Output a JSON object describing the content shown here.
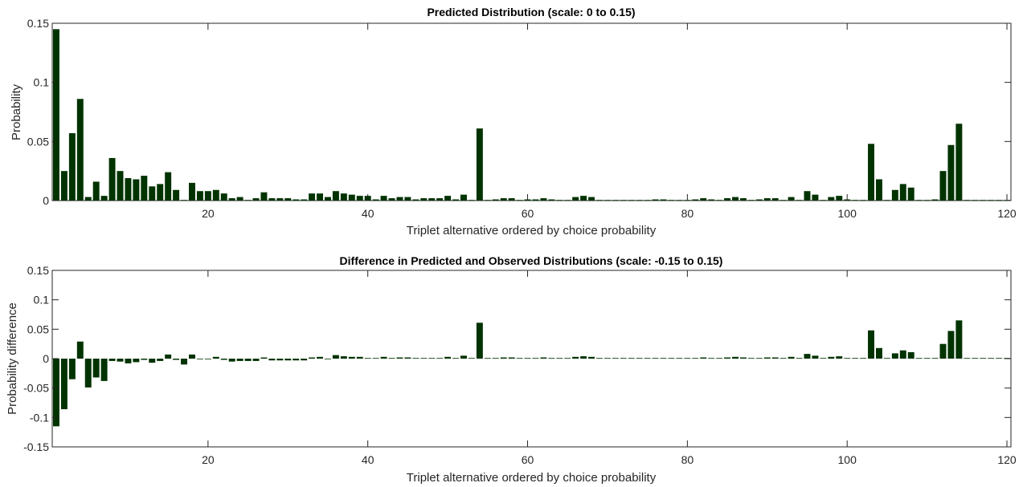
{
  "chart_data": [
    {
      "type": "bar",
      "title": "Predicted Distribution (scale: 0 to 0.15)",
      "xlabel": "Triplet alternative ordered by choice probability",
      "ylabel": "Probability",
      "xlim": [
        0.5,
        120.5
      ],
      "ylim": [
        0,
        0.15
      ],
      "xticks": [
        20,
        40,
        60,
        80,
        100,
        120
      ],
      "yticks": [
        0,
        0.05,
        0.1,
        0.15
      ],
      "xtick_labels": [
        "20",
        "40",
        "60",
        "80",
        "100",
        "120"
      ],
      "ytick_labels": [
        "0",
        "0.05",
        "0.1",
        "0.15"
      ],
      "grid": false,
      "bar_color": "#003300",
      "x": [
        1,
        2,
        3,
        4,
        5,
        6,
        7,
        8,
        9,
        10,
        11,
        12,
        13,
        14,
        15,
        16,
        17,
        18,
        19,
        20,
        21,
        22,
        23,
        24,
        25,
        26,
        27,
        28,
        29,
        30,
        31,
        32,
        33,
        34,
        35,
        36,
        37,
        38,
        39,
        40,
        41,
        42,
        43,
        44,
        45,
        46,
        47,
        48,
        49,
        50,
        51,
        52,
        53,
        54,
        55,
        56,
        57,
        58,
        59,
        60,
        61,
        62,
        63,
        64,
        65,
        66,
        67,
        68,
        69,
        70,
        71,
        72,
        73,
        74,
        75,
        76,
        77,
        78,
        79,
        80,
        81,
        82,
        83,
        84,
        85,
        86,
        87,
        88,
        89,
        90,
        91,
        92,
        93,
        94,
        95,
        96,
        97,
        98,
        99,
        100,
        101,
        102,
        103,
        104,
        105,
        106,
        107,
        108,
        109,
        110,
        111,
        112,
        113,
        114,
        115,
        116,
        117,
        118,
        119,
        120
      ],
      "values": [
        0.145,
        0.025,
        0.057,
        0.086,
        0.003,
        0.016,
        0.004,
        0.036,
        0.025,
        0.019,
        0.018,
        0.021,
        0.012,
        0.014,
        0.024,
        0.009,
        0.0005,
        0.015,
        0.008,
        0.008,
        0.009,
        0.006,
        0.002,
        0.003,
        0.0005,
        0.002,
        0.007,
        0.002,
        0.002,
        0.002,
        0.001,
        0.001,
        0.006,
        0.006,
        0.003,
        0.008,
        0.006,
        0.005,
        0.004,
        0.004,
        0.001,
        0.004,
        0.002,
        0.003,
        0.003,
        0.001,
        0.002,
        0.002,
        0.002,
        0.004,
        0.001,
        0.005,
        0.0005,
        0.061,
        0.0005,
        0.001,
        0.002,
        0.002,
        0.0005,
        0.001,
        0.001,
        0.002,
        0.001,
        0.0005,
        0.0005,
        0.003,
        0.004,
        0.003,
        0.0005,
        0.0005,
        0.0005,
        0.0005,
        0.0005,
        0.0005,
        0.0005,
        0.001,
        0.001,
        0.0005,
        0.0005,
        0.0005,
        0.001,
        0.002,
        0.001,
        0.0005,
        0.002,
        0.003,
        0.002,
        0.0005,
        0.001,
        0.002,
        0.002,
        0.0005,
        0.003,
        0.0005,
        0.008,
        0.005,
        0.0005,
        0.003,
        0.004,
        0.001,
        0.0005,
        0.0005,
        0.048,
        0.018,
        0.0005,
        0.009,
        0.014,
        0.011,
        0.0005,
        0.0005,
        0.001,
        0.025,
        0.047,
        0.065,
        0.0005,
        0.0005,
        0.0005,
        0.0005,
        0.0005,
        0.0005
      ]
    },
    {
      "type": "bar",
      "title": "Difference in Predicted and Observed Distributions (scale: -0.15 to 0.15)",
      "xlabel": "Triplet alternative ordered by choice probability",
      "ylabel": "Probability difference",
      "xlim": [
        0.5,
        120.5
      ],
      "ylim": [
        -0.15,
        0.15
      ],
      "xticks": [
        20,
        40,
        60,
        80,
        100,
        120
      ],
      "yticks": [
        -0.15,
        -0.1,
        -0.05,
        0,
        0.05,
        0.1,
        0.15
      ],
      "xtick_labels": [
        "20",
        "40",
        "60",
        "80",
        "100",
        "120"
      ],
      "ytick_labels": [
        "-0.15",
        "-0.1",
        "-0.05",
        "0",
        "0.05",
        "0.1",
        "0.15"
      ],
      "grid": false,
      "bar_color": "#003300",
      "x": [
        1,
        2,
        3,
        4,
        5,
        6,
        7,
        8,
        9,
        10,
        11,
        12,
        13,
        14,
        15,
        16,
        17,
        18,
        19,
        20,
        21,
        22,
        23,
        24,
        25,
        26,
        27,
        28,
        29,
        30,
        31,
        32,
        33,
        34,
        35,
        36,
        37,
        38,
        39,
        40,
        41,
        42,
        43,
        44,
        45,
        46,
        47,
        48,
        49,
        50,
        51,
        52,
        53,
        54,
        55,
        56,
        57,
        58,
        59,
        60,
        61,
        62,
        63,
        64,
        65,
        66,
        67,
        68,
        69,
        70,
        71,
        72,
        73,
        74,
        75,
        76,
        77,
        78,
        79,
        80,
        81,
        82,
        83,
        84,
        85,
        86,
        87,
        88,
        89,
        90,
        91,
        92,
        93,
        94,
        95,
        96,
        97,
        98,
        99,
        100,
        101,
        102,
        103,
        104,
        105,
        106,
        107,
        108,
        109,
        110,
        111,
        112,
        113,
        114,
        115,
        116,
        117,
        118,
        119,
        120
      ],
      "values": [
        -0.115,
        -0.086,
        -0.035,
        0.029,
        -0.049,
        -0.032,
        -0.038,
        -0.004,
        -0.005,
        -0.008,
        -0.006,
        -0.002,
        -0.007,
        -0.004,
        0.007,
        -0.002,
        -0.01,
        0.007,
        -0.001,
        -0.001,
        0.003,
        -0.002,
        -0.005,
        -0.004,
        -0.004,
        -0.004,
        0.002,
        -0.003,
        -0.003,
        -0.003,
        -0.003,
        -0.003,
        0.002,
        0.003,
        -0.001,
        0.006,
        0.004,
        0.003,
        0.003,
        0.001,
        0.001,
        0.003,
        0.001,
        0.002,
        0.002,
        0.001,
        0.001,
        0.001,
        0.001,
        0.003,
        0.001,
        0.005,
        0.0005,
        0.061,
        0.0005,
        0.001,
        0.002,
        0.002,
        0.0005,
        0.001,
        0.001,
        0.002,
        0.001,
        0.0005,
        0.0005,
        0.003,
        0.004,
        0.003,
        0.0005,
        0.0005,
        0.0005,
        0.0005,
        0.0005,
        0.0005,
        0.0005,
        0.001,
        0.001,
        0.0005,
        0.0005,
        0.0005,
        0.001,
        0.002,
        0.001,
        0.0005,
        0.002,
        0.003,
        0.002,
        0.0005,
        0.001,
        0.002,
        0.002,
        0.0005,
        0.003,
        0.0005,
        0.008,
        0.005,
        0.0005,
        0.003,
        0.004,
        0.001,
        0.0005,
        0.0005,
        0.048,
        0.018,
        0.0005,
        0.009,
        0.014,
        0.011,
        0.0005,
        0.0005,
        0.001,
        0.025,
        0.047,
        0.065,
        0.0005,
        0.0005,
        0.0005,
        0.0005,
        0.0005,
        0.0005
      ]
    }
  ]
}
